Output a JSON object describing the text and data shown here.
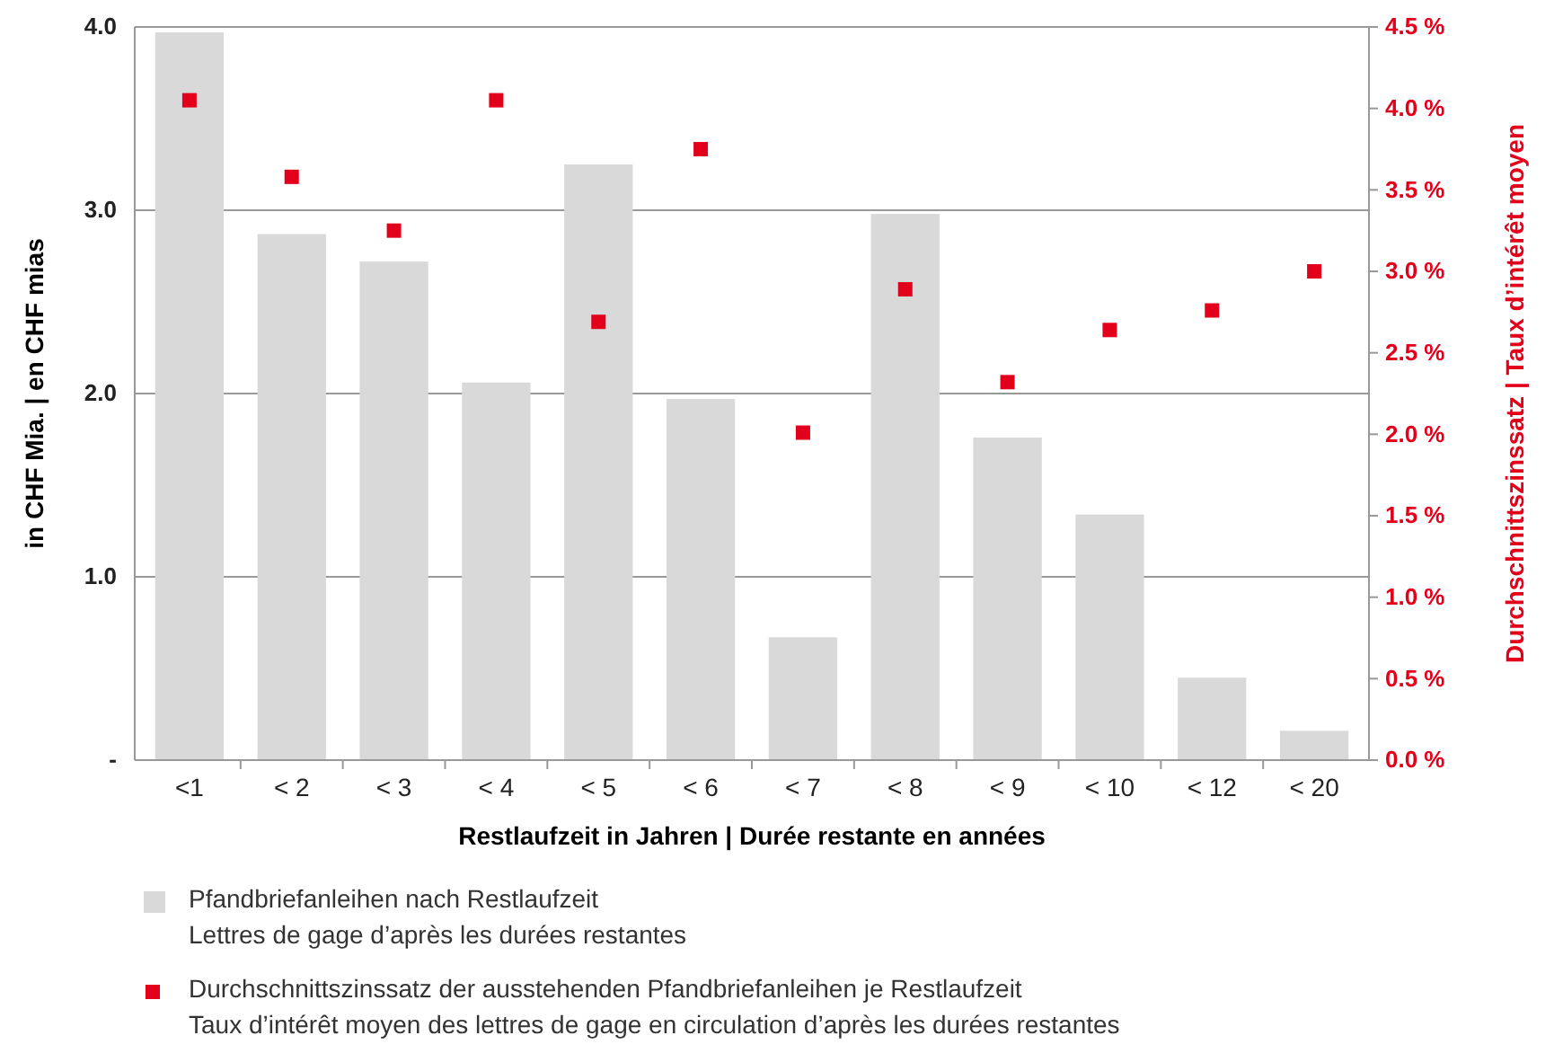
{
  "chart_data": {
    "type": "bar",
    "xlabel": "Restlaufzeit in Jahren | Durée restante en années",
    "ylabel": "in CHF Mia. | en CHF mias",
    "y2label": "Durchschnittszinssatz | Taux d’intérêt moyen",
    "categories": [
      "<1",
      "< 2",
      "< 3",
      "< 4",
      "< 5",
      "< 6",
      "< 7",
      "< 8",
      "< 9",
      "< 10",
      "< 12",
      "< 20"
    ],
    "series": [
      {
        "name": "Pfandbriefanleihen nach Restlaufzeit\nLettres de gage d’après les durées restantes",
        "color": "#d9d9da",
        "values": [
          3.97,
          2.87,
          2.72,
          2.06,
          3.25,
          1.97,
          0.67,
          2.98,
          1.76,
          1.34,
          0.45,
          0.16
        ]
      },
      {
        "name": "Durchschnittszinssatz der ausstehenden Pfandbriefanleihen je Restlaufzeit\nTaux d’intérêt moyen des lettres de gage en circulation d’après les durées restantes",
        "type": "scatter",
        "axis": "y2",
        "marker": "square",
        "color": "#e3001b",
        "values": [
          4.05,
          3.58,
          3.25,
          4.05,
          2.69,
          3.75,
          2.01,
          2.89,
          2.32,
          2.64,
          2.76,
          3.0
        ]
      }
    ],
    "ylim": [
      0,
      4
    ],
    "yticks": [
      {
        "value": 0,
        "label": "-"
      },
      {
        "value": 1,
        "label": "1.0"
      },
      {
        "value": 2,
        "label": "2.0"
      },
      {
        "value": 3,
        "label": "3.0"
      },
      {
        "value": 4,
        "label": "4.0"
      }
    ],
    "y2lim": [
      0,
      4.5
    ],
    "y2ticks": [
      {
        "value": 0,
        "label": "0.0 %"
      },
      {
        "value": 0.5,
        "label": "0.5 %"
      },
      {
        "value": 1,
        "label": "1.0 %"
      },
      {
        "value": 1.5,
        "label": "1.5 %"
      },
      {
        "value": 2,
        "label": "2.0 %"
      },
      {
        "value": 2.5,
        "label": "2.5 %"
      },
      {
        "value": 3,
        "label": "3.0 %"
      },
      {
        "value": 3.5,
        "label": "3.5 %"
      },
      {
        "value": 4,
        "label": "4.0 %"
      },
      {
        "value": 4.5,
        "label": "4.5 %"
      }
    ],
    "grid": "y",
    "legend": "bottom"
  }
}
